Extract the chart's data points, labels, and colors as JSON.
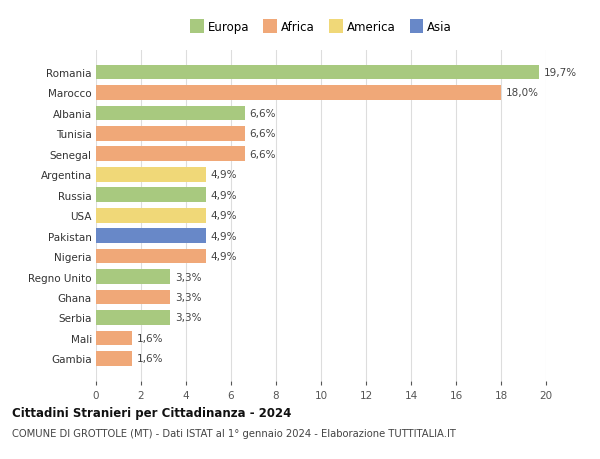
{
  "categories": [
    "Gambia",
    "Mali",
    "Serbia",
    "Ghana",
    "Regno Unito",
    "Nigeria",
    "Pakistan",
    "USA",
    "Russia",
    "Argentina",
    "Senegal",
    "Tunisia",
    "Albania",
    "Marocco",
    "Romania"
  ],
  "values": [
    1.6,
    1.6,
    3.3,
    3.3,
    3.3,
    4.9,
    4.9,
    4.9,
    4.9,
    4.9,
    6.6,
    6.6,
    6.6,
    18.0,
    19.7
  ],
  "continents": [
    "Africa",
    "Africa",
    "Europa",
    "Africa",
    "Europa",
    "Africa",
    "Asia",
    "America",
    "Europa",
    "America",
    "Africa",
    "Africa",
    "Europa",
    "Africa",
    "Europa"
  ],
  "labels": [
    "1,6%",
    "1,6%",
    "3,3%",
    "3,3%",
    "3,3%",
    "4,9%",
    "4,9%",
    "4,9%",
    "4,9%",
    "4,9%",
    "6,6%",
    "6,6%",
    "6,6%",
    "18,0%",
    "19,7%"
  ],
  "colors": {
    "Europa": "#a8c97f",
    "Africa": "#f0a878",
    "America": "#f0d878",
    "Asia": "#6888c8"
  },
  "title1": "Cittadini Stranieri per Cittadinanza - 2024",
  "title2": "COMUNE DI GROTTOLE (MT) - Dati ISTAT al 1° gennaio 2024 - Elaborazione TUTTITALIA.IT",
  "xlim": [
    0,
    20
  ],
  "xticks": [
    0,
    2,
    4,
    6,
    8,
    10,
    12,
    14,
    16,
    18,
    20
  ],
  "background_color": "#ffffff",
  "grid_color": "#dddddd",
  "bar_height": 0.72
}
